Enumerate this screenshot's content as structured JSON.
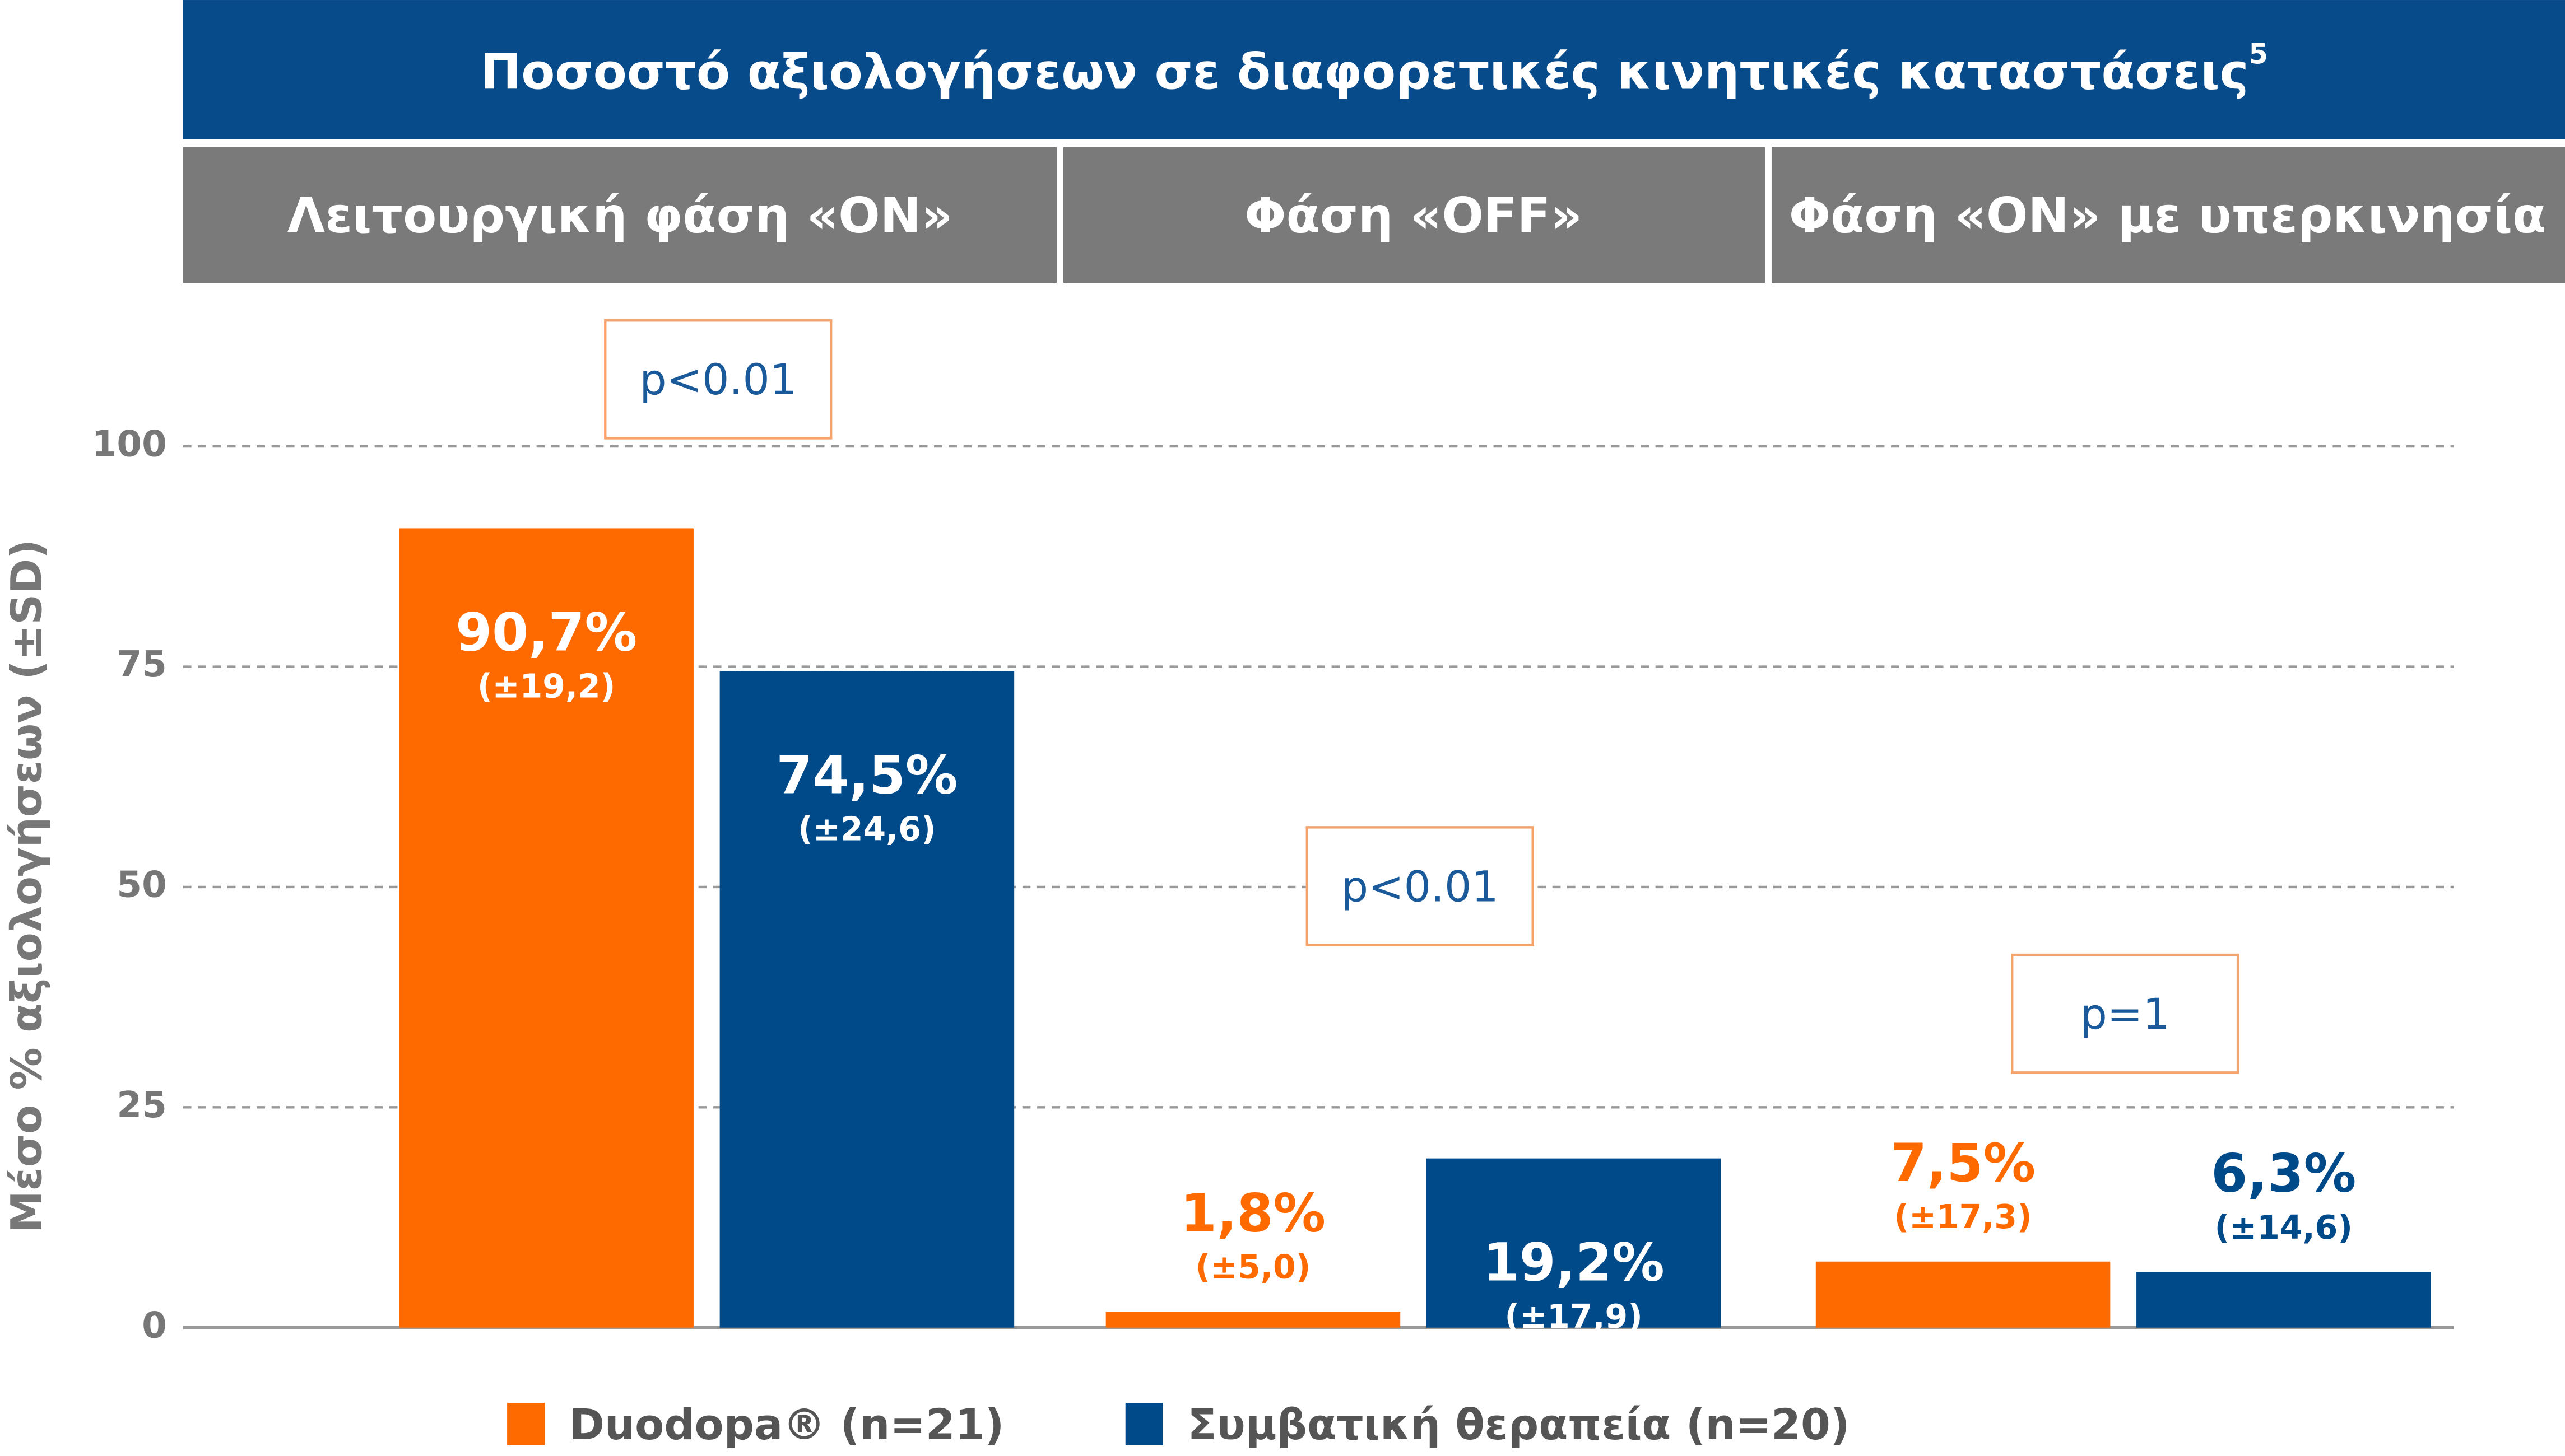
{
  "chart_data": {
    "type": "bar",
    "title": "Ποσοστό αξιολογήσεων σε διαφορετικές κινητικές καταστάσεις",
    "title_superscript": "5",
    "y_label": "Μέσο % αξιολογήσεων (±SD)",
    "categories": [
      "Λειτουργική φάση «ΟΝ»",
      "Φάση «OFF»",
      "Φάση «ΟΝ» με υπερκινησία"
    ],
    "annotations": [
      "p<0.01",
      "p<0.01",
      "p=1"
    ],
    "series": [
      {
        "name": "Duodopa® (n=21)",
        "color": "#ff6a00",
        "values": [
          90.7,
          1.8,
          7.5
        ],
        "value_labels": [
          "90,7%",
          "1,8%",
          "7,5%"
        ],
        "errors": [
          19.2,
          5.0,
          17.3
        ],
        "error_labels": [
          "(±19,2)",
          "(±5,0)",
          "(±17,3)"
        ]
      },
      {
        "name": "Συμβατική θεραπεία (n=20)",
        "color": "#004a8a",
        "values": [
          74.5,
          19.2,
          6.3
        ],
        "value_labels": [
          "74,5%",
          "19,2%",
          "6,3%"
        ],
        "errors": [
          24.6,
          17.9,
          14.6
        ],
        "error_labels": [
          "(±24,6)",
          "(±17,9)",
          "(±14,6)"
        ]
      }
    ],
    "ylim": [
      0,
      100
    ],
    "yticks": [
      0,
      25,
      50,
      75,
      100
    ],
    "grid": true
  }
}
